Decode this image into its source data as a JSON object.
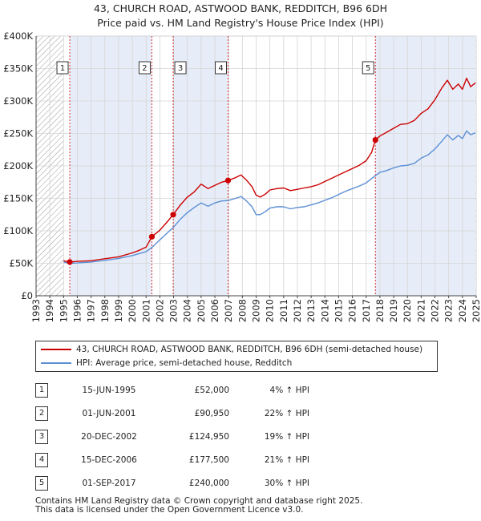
{
  "chart_data": {
    "type": "line",
    "title": "43, CHURCH ROAD, ASTWOOD BANK, REDDITCH, B96 6DH",
    "subtitle": "Price paid vs. HM Land Registry's House Price Index (HPI)",
    "xlabel": "",
    "ylabel": "",
    "xlim": [
      1993,
      2025
    ],
    "ylim": [
      0,
      400000
    ],
    "x_ticks": [
      1993,
      1994,
      1995,
      1996,
      1997,
      1998,
      1999,
      2000,
      2001,
      2002,
      2003,
      2004,
      2005,
      2006,
      2007,
      2008,
      2009,
      2010,
      2011,
      2012,
      2013,
      2014,
      2015,
      2016,
      2017,
      2018,
      2019,
      2020,
      2021,
      2022,
      2023,
      2024,
      2025
    ],
    "y_ticks": [
      {
        "value": 0,
        "label": "£0"
      },
      {
        "value": 50000,
        "label": "£50K"
      },
      {
        "value": 100000,
        "label": "£100K"
      },
      {
        "value": 150000,
        "label": "£150K"
      },
      {
        "value": 200000,
        "label": "£200K"
      },
      {
        "value": 250000,
        "label": "£250K"
      },
      {
        "value": 300000,
        "label": "£300K"
      },
      {
        "value": 350000,
        "label": "£350K"
      },
      {
        "value": 400000,
        "label": "£400K"
      }
    ],
    "grid": true,
    "hatched_before": 1995.0,
    "hatched_after": 2024.95,
    "shaded_spans": [
      [
        1995.45,
        2001.42
      ],
      [
        2002.97,
        2006.96
      ],
      [
        2017.67,
        2024.95
      ]
    ],
    "series": [
      {
        "name": "43, CHURCH ROAD, ASTWOOD BANK, REDDITCH, B96 6DH (semi-detached house)",
        "color": "#cc0000",
        "x": [
          1995.0,
          1995.45,
          1996.0,
          1997.0,
          1998.0,
          1999.0,
          2000.0,
          2000.5,
          2001.0,
          2001.42,
          2002.0,
          2002.5,
          2002.97,
          2003.5,
          2004.0,
          2004.5,
          2005.0,
          2005.5,
          2006.0,
          2006.5,
          2006.96,
          2007.5,
          2007.9,
          2008.3,
          2008.7,
          2009.0,
          2009.3,
          2009.7,
          2010.0,
          2010.5,
          2011.0,
          2011.5,
          2012.0,
          2012.5,
          2013.0,
          2013.5,
          2014.0,
          2014.5,
          2015.0,
          2015.5,
          2016.0,
          2016.5,
          2017.0,
          2017.4,
          2017.67,
          2018.0,
          2018.5,
          2019.0,
          2019.5,
          2020.0,
          2020.5,
          2021.0,
          2021.5,
          2022.0,
          2022.5,
          2022.9,
          2023.3,
          2023.7,
          2024.0,
          2024.3,
          2024.6,
          2024.95
        ],
        "values": [
          54000,
          52000,
          53000,
          54000,
          57000,
          60000,
          66000,
          70000,
          75000,
          90950,
          101000,
          113000,
          124950,
          140000,
          152000,
          160000,
          172000,
          165000,
          170000,
          175000,
          177500,
          182000,
          186000,
          178000,
          168000,
          155000,
          152000,
          157000,
          163000,
          165000,
          166000,
          162000,
          164000,
          166000,
          168000,
          171000,
          176000,
          181000,
          186000,
          191000,
          196000,
          201000,
          208000,
          221000,
          240000,
          246000,
          252000,
          258000,
          264000,
          265000,
          270000,
          281000,
          288000,
          302000,
          320000,
          332000,
          318000,
          326000,
          318000,
          335000,
          322000,
          328000
        ]
      },
      {
        "name": "HPI: Average price, semi-detached house, Redditch",
        "color": "#5b8fd6",
        "x": [
          1995.0,
          1995.45,
          1996.0,
          1997.0,
          1998.0,
          1999.0,
          2000.0,
          2001.0,
          2001.42,
          2002.0,
          2002.5,
          2002.97,
          2003.5,
          2004.0,
          2004.5,
          2005.0,
          2005.5,
          2006.0,
          2006.5,
          2006.96,
          2007.5,
          2007.9,
          2008.3,
          2008.7,
          2009.0,
          2009.3,
          2009.7,
          2010.0,
          2010.5,
          2011.0,
          2011.5,
          2012.0,
          2012.5,
          2013.0,
          2013.5,
          2014.0,
          2014.5,
          2015.0,
          2015.5,
          2016.0,
          2016.5,
          2017.0,
          2017.67,
          2018.0,
          2018.5,
          2019.0,
          2019.5,
          2020.0,
          2020.5,
          2021.0,
          2021.5,
          2022.0,
          2022.5,
          2022.9,
          2023.3,
          2023.7,
          2024.0,
          2024.3,
          2024.6,
          2024.95
        ],
        "values": [
          52000,
          50000,
          50500,
          52000,
          54500,
          57500,
          62000,
          68000,
          74500,
          86000,
          96000,
          105000,
          118000,
          128000,
          136000,
          143000,
          138000,
          143000,
          146000,
          146700,
          150000,
          153000,
          146000,
          137000,
          125000,
          125000,
          130000,
          135000,
          137000,
          137000,
          134000,
          136000,
          137000,
          140000,
          143000,
          147000,
          151000,
          156000,
          161000,
          165000,
          169000,
          174000,
          185000,
          190000,
          193000,
          197000,
          200000,
          201000,
          204000,
          212000,
          217000,
          226000,
          238000,
          248000,
          240000,
          247000,
          242000,
          254000,
          248000,
          251000
        ]
      }
    ],
    "sales": [
      {
        "label": "1",
        "x": 1995.45,
        "value": 52000
      },
      {
        "label": "2",
        "x": 2001.42,
        "value": 90950
      },
      {
        "label": "3",
        "x": 2002.97,
        "value": 124950
      },
      {
        "label": "4",
        "x": 2006.96,
        "value": 177500
      },
      {
        "label": "5",
        "x": 2017.67,
        "value": 240000
      }
    ]
  },
  "legend": {
    "property": "43, CHURCH ROAD, ASTWOOD BANK, REDDITCH, B96 6DH (semi-detached house)",
    "hpi": "HPI: Average price, semi-detached house, Redditch"
  },
  "sales_table": [
    {
      "num": "1",
      "date": "15-JUN-1995",
      "price": "£52,000",
      "hpi": "4% ↑ HPI"
    },
    {
      "num": "2",
      "date": "01-JUN-2001",
      "price": "£90,950",
      "hpi": "22% ↑ HPI"
    },
    {
      "num": "3",
      "date": "20-DEC-2002",
      "price": "£124,950",
      "hpi": "19% ↑ HPI"
    },
    {
      "num": "4",
      "date": "15-DEC-2006",
      "price": "£177,500",
      "hpi": "21% ↑ HPI"
    },
    {
      "num": "5",
      "date": "01-SEP-2017",
      "price": "£240,000",
      "hpi": "30% ↑ HPI"
    }
  ],
  "footer": {
    "line1": "Contains HM Land Registry data © Crown copyright and database right 2025.",
    "line2": "This data is licensed under the Open Government Licence v3.0."
  }
}
